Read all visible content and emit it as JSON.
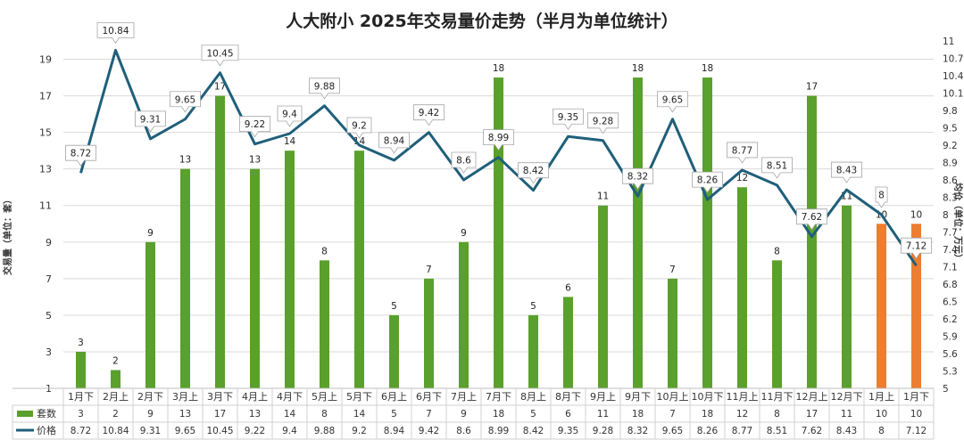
{
  "chart_data": {
    "type": "bar+line",
    "title": "人大附小 2025年交易量价走势（半月为单位统计）",
    "ylabel_left": "交易量（单位：套）",
    "ylabel_right": "均价（单位：万元）",
    "left_ticks": [
      "1",
      "3",
      "5",
      "7",
      "9",
      "11",
      "13",
      "15",
      "17",
      "19"
    ],
    "right_ticks": [
      "5",
      "5.3",
      "5.6",
      "5.9",
      "6.2",
      "6.5",
      "6.8",
      "7.1",
      "7.4",
      "7.7",
      "8",
      "8.3",
      "8.6",
      "8.9",
      "9.2",
      "9.5",
      "9.8",
      "10.1",
      "10.4",
      "10.7",
      "11"
    ],
    "ylim_left": [
      1,
      20
    ],
    "ylim_right": [
      5,
      11
    ],
    "categories": [
      "1月下",
      "2月上",
      "2月下",
      "3月上",
      "3月下",
      "4月上",
      "4月下",
      "5月上",
      "5月下",
      "6月上",
      "6月下",
      "7月上",
      "7月下",
      "8月上",
      "8月下",
      "9月上",
      "9月下",
      "10月上",
      "10月下",
      "11月上",
      "11月下",
      "12月上",
      "12月下",
      "1月上",
      "1月下"
    ],
    "series": [
      {
        "name": "套数",
        "kind": "bar",
        "color": "#5aa02c",
        "highlight_color": "#ed7d31",
        "highlight_from_index": 23,
        "values": [
          3,
          2,
          9,
          13,
          17,
          13,
          14,
          8,
          14,
          5,
          7,
          9,
          18,
          5,
          6,
          11,
          18,
          7,
          18,
          12,
          8,
          17,
          11,
          10,
          10
        ],
        "labels": [
          "3",
          "2",
          "9",
          "13",
          "17",
          "13",
          "14",
          "8",
          "14",
          "5",
          "7",
          "9",
          "18",
          "5",
          "6",
          "11",
          "18",
          "7",
          "18",
          "12",
          "8",
          "17",
          "11",
          "10",
          "10"
        ]
      },
      {
        "name": "价格",
        "kind": "line",
        "color": "#1f5f7a",
        "values": [
          8.72,
          10.84,
          9.31,
          9.65,
          10.45,
          9.22,
          9.4,
          9.88,
          9.2,
          8.94,
          9.42,
          8.6,
          8.99,
          8.42,
          9.35,
          9.28,
          8.32,
          9.65,
          8.26,
          8.77,
          8.51,
          7.62,
          8.43,
          8,
          7.12
        ],
        "labels": [
          "8.72",
          "10.84",
          "9.31",
          "9.65",
          "10.45",
          "9.22",
          "9.4",
          "9.88",
          "9.2",
          "8.94",
          "9.42",
          "8.6",
          "8.99",
          "8.42",
          "9.35",
          "9.28",
          "8.32",
          "9.65",
          "8.26",
          "8.77",
          "8.51",
          "7.62",
          "8.43",
          "8",
          "7.12"
        ]
      }
    ]
  }
}
